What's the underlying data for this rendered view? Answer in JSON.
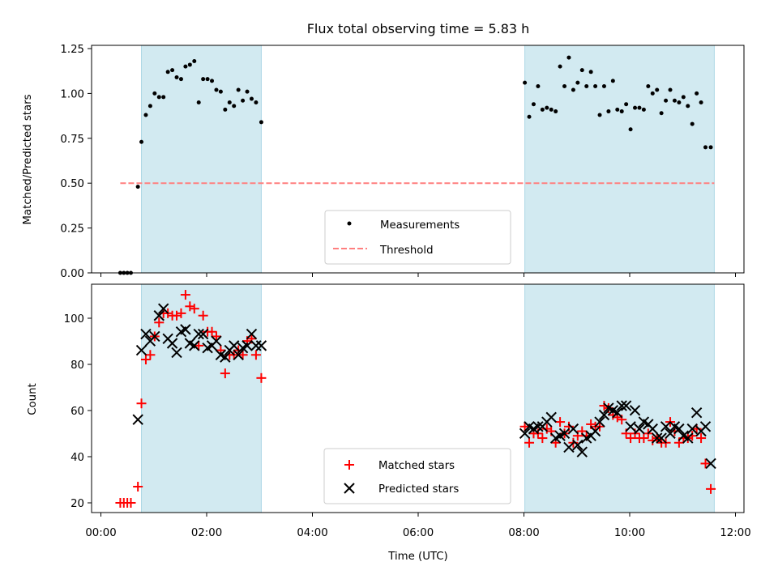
{
  "title": "Flux total observing time = 5.83 h",
  "colors": {
    "span": "#add8e6",
    "threshold": "#ff7f7f",
    "measurement": "#000000",
    "matched": "#ff0000",
    "predicted": "#000000"
  },
  "chart_data": [
    {
      "type": "scatter",
      "panel": "top",
      "ylabel": "Matched/Predicted stars",
      "xlim": [
        "00:00",
        "12:00"
      ],
      "ylim": [
        0,
        1.25
      ],
      "yticks": [
        "0.00",
        "0.25",
        "0.50",
        "0.75",
        "1.00",
        "1.25"
      ],
      "xticks_labels_shown": false,
      "legend_position": "bottom-center",
      "observing_spans": [
        [
          "00:46",
          "03:02"
        ],
        [
          "08:01",
          "11:36"
        ]
      ],
      "threshold": {
        "name": "Threshold",
        "value": 0.5,
        "x_range": [
          "00:22",
          "11:36"
        ],
        "style": "dashed"
      },
      "series": [
        {
          "name": "Measurements",
          "marker": "dot",
          "points": [
            [
              "00:22",
              0.0
            ],
            [
              "00:26",
              0.0
            ],
            [
              "00:30",
              0.0
            ],
            [
              "00:34",
              0.0
            ],
            [
              "00:42",
              0.48
            ],
            [
              "00:46",
              0.73
            ],
            [
              "00:51",
              0.88
            ],
            [
              "00:56",
              0.93
            ],
            [
              "01:01",
              1.0
            ],
            [
              "01:06",
              0.98
            ],
            [
              "01:11",
              0.98
            ],
            [
              "01:16",
              1.12
            ],
            [
              "01:21",
              1.13
            ],
            [
              "01:26",
              1.09
            ],
            [
              "01:31",
              1.08
            ],
            [
              "01:36",
              1.15
            ],
            [
              "01:41",
              1.16
            ],
            [
              "01:46",
              1.18
            ],
            [
              "01:51",
              0.95
            ],
            [
              "01:56",
              1.08
            ],
            [
              "02:01",
              1.08
            ],
            [
              "02:06",
              1.07
            ],
            [
              "02:11",
              1.02
            ],
            [
              "02:16",
              1.01
            ],
            [
              "02:21",
              0.91
            ],
            [
              "02:26",
              0.95
            ],
            [
              "02:31",
              0.93
            ],
            [
              "02:36",
              1.02
            ],
            [
              "02:41",
              0.96
            ],
            [
              "02:46",
              1.01
            ],
            [
              "02:51",
              0.97
            ],
            [
              "02:56",
              0.95
            ],
            [
              "03:02",
              0.84
            ],
            [
              "08:01",
              1.06
            ],
            [
              "08:06",
              0.87
            ],
            [
              "08:11",
              0.94
            ],
            [
              "08:16",
              1.04
            ],
            [
              "08:21",
              0.91
            ],
            [
              "08:26",
              0.92
            ],
            [
              "08:31",
              0.91
            ],
            [
              "08:36",
              0.9
            ],
            [
              "08:41",
              1.15
            ],
            [
              "08:46",
              1.04
            ],
            [
              "08:51",
              1.2
            ],
            [
              "08:56",
              1.02
            ],
            [
              "09:01",
              1.06
            ],
            [
              "09:06",
              1.13
            ],
            [
              "09:11",
              1.04
            ],
            [
              "09:16",
              1.12
            ],
            [
              "09:21",
              1.04
            ],
            [
              "09:26",
              0.88
            ],
            [
              "09:31",
              1.04
            ],
            [
              "09:36",
              0.9
            ],
            [
              "09:41",
              1.07
            ],
            [
              "09:46",
              0.91
            ],
            [
              "09:51",
              0.9
            ],
            [
              "09:56",
              0.94
            ],
            [
              "10:01",
              0.8
            ],
            [
              "10:06",
              0.92
            ],
            [
              "10:11",
              0.92
            ],
            [
              "10:16",
              0.91
            ],
            [
              "10:21",
              1.04
            ],
            [
              "10:26",
              1.0
            ],
            [
              "10:31",
              1.02
            ],
            [
              "10:36",
              0.89
            ],
            [
              "10:41",
              0.96
            ],
            [
              "10:46",
              1.02
            ],
            [
              "10:51",
              0.96
            ],
            [
              "10:56",
              0.95
            ],
            [
              "11:01",
              0.98
            ],
            [
              "11:06",
              0.93
            ],
            [
              "11:11",
              0.83
            ],
            [
              "11:16",
              1.0
            ],
            [
              "11:21",
              0.95
            ],
            [
              "11:26",
              0.7
            ],
            [
              "11:32",
              0.7
            ]
          ]
        }
      ]
    },
    {
      "type": "scatter",
      "panel": "bottom",
      "xlabel": "Time (UTC)",
      "ylabel": "Count",
      "xlim": [
        "00:00",
        "12:00"
      ],
      "ylim": [
        16,
        115
      ],
      "xticks": [
        "00:00",
        "02:00",
        "04:00",
        "06:00",
        "08:00",
        "10:00",
        "12:00"
      ],
      "yticks": [
        "20",
        "40",
        "60",
        "80",
        "100"
      ],
      "legend_position": "bottom-center",
      "observing_spans": [
        [
          "00:46",
          "03:02"
        ],
        [
          "08:01",
          "11:36"
        ]
      ],
      "series": [
        {
          "name": "Matched stars",
          "marker": "plus",
          "points": [
            [
              "00:22",
              20
            ],
            [
              "00:26",
              20
            ],
            [
              "00:30",
              20
            ],
            [
              "00:34",
              20
            ],
            [
              "00:42",
              27
            ],
            [
              "00:46",
              63
            ],
            [
              "00:51",
              82
            ],
            [
              "00:56",
              84
            ],
            [
              "01:01",
              92
            ],
            [
              "01:06",
              98
            ],
            [
              "01:11",
              102
            ],
            [
              "01:16",
              102
            ],
            [
              "01:21",
              101
            ],
            [
              "01:26",
              101
            ],
            [
              "01:31",
              102
            ],
            [
              "01:36",
              110
            ],
            [
              "01:41",
              105
            ],
            [
              "01:46",
              104
            ],
            [
              "01:51",
              88
            ],
            [
              "01:56",
              101
            ],
            [
              "02:01",
              94
            ],
            [
              "02:06",
              94
            ],
            [
              "02:11",
              92
            ],
            [
              "02:16",
              86
            ],
            [
              "02:21",
              76
            ],
            [
              "02:26",
              84
            ],
            [
              "02:31",
              84
            ],
            [
              "02:36",
              86
            ],
            [
              "02:41",
              84
            ],
            [
              "02:46",
              90
            ],
            [
              "02:51",
              91
            ],
            [
              "02:56",
              84
            ],
            [
              "03:02",
              74
            ],
            [
              "08:01",
              53
            ],
            [
              "08:06",
              46
            ],
            [
              "08:11",
              50
            ],
            [
              "08:16",
              50
            ],
            [
              "08:21",
              48
            ],
            [
              "08:26",
              52
            ],
            [
              "08:31",
              51
            ],
            [
              "08:36",
              46
            ],
            [
              "08:41",
              55
            ],
            [
              "08:46",
              50
            ],
            [
              "08:51",
              53
            ],
            [
              "08:56",
              46
            ],
            [
              "09:01",
              49
            ],
            [
              "09:06",
              51
            ],
            [
              "09:11",
              49
            ],
            [
              "09:16",
              54
            ],
            [
              "09:21",
              53
            ],
            [
              "09:26",
              53
            ],
            [
              "09:31",
              62
            ],
            [
              "09:36",
              61
            ],
            [
              "09:41",
              58
            ],
            [
              "09:46",
              57
            ],
            [
              "09:51",
              56
            ],
            [
              "09:56",
              50
            ],
            [
              "10:01",
              48
            ],
            [
              "10:06",
              50
            ],
            [
              "10:11",
              48
            ],
            [
              "10:16",
              48
            ],
            [
              "10:21",
              50
            ],
            [
              "10:26",
              47
            ],
            [
              "10:31",
              48
            ],
            [
              "10:36",
              46
            ],
            [
              "10:41",
              46
            ],
            [
              "10:46",
              55
            ],
            [
              "10:51",
              51
            ],
            [
              "10:56",
              46
            ],
            [
              "11:01",
              48
            ],
            [
              "11:06",
              48
            ],
            [
              "11:11",
              49
            ],
            [
              "11:16",
              52
            ],
            [
              "11:21",
              48
            ],
            [
              "11:26",
              37
            ],
            [
              "11:32",
              26
            ]
          ]
        },
        {
          "name": "Predicted stars",
          "marker": "x",
          "points": [
            [
              "00:42",
              56
            ],
            [
              "00:46",
              86
            ],
            [
              "00:51",
              93
            ],
            [
              "00:56",
              90
            ],
            [
              "01:01",
              92
            ],
            [
              "01:06",
              101
            ],
            [
              "01:11",
              104
            ],
            [
              "01:16",
              91
            ],
            [
              "01:21",
              89
            ],
            [
              "01:26",
              85
            ],
            [
              "01:31",
              94
            ],
            [
              "01:36",
              95
            ],
            [
              "01:41",
              89
            ],
            [
              "01:46",
              88
            ],
            [
              "01:51",
              93
            ],
            [
              "01:56",
              93
            ],
            [
              "02:01",
              87
            ],
            [
              "02:06",
              88
            ],
            [
              "02:11",
              90
            ],
            [
              "02:16",
              84
            ],
            [
              "02:21",
              83
            ],
            [
              "02:26",
              86
            ],
            [
              "02:31",
              88
            ],
            [
              "02:36",
              84
            ],
            [
              "02:41",
              87
            ],
            [
              "02:46",
              88
            ],
            [
              "02:51",
              93
            ],
            [
              "02:56",
              88
            ],
            [
              "03:02",
              88
            ],
            [
              "08:01",
              50
            ],
            [
              "08:06",
              53
            ],
            [
              "08:11",
              52
            ],
            [
              "08:16",
              53
            ],
            [
              "08:21",
              53
            ],
            [
              "08:26",
              55
            ],
            [
              "08:31",
              57
            ],
            [
              "08:36",
              48
            ],
            [
              "08:41",
              49
            ],
            [
              "08:46",
              50
            ],
            [
              "08:51",
              44
            ],
            [
              "08:56",
              52
            ],
            [
              "09:01",
              45
            ],
            [
              "09:06",
              42
            ],
            [
              "09:11",
              48
            ],
            [
              "09:16",
              49
            ],
            [
              "09:21",
              51
            ],
            [
              "09:26",
              55
            ],
            [
              "09:31",
              58
            ],
            [
              "09:36",
              61
            ],
            [
              "09:41",
              60
            ],
            [
              "09:46",
              59
            ],
            [
              "09:51",
              62
            ],
            [
              "09:56",
              62
            ],
            [
              "10:01",
              53
            ],
            [
              "10:06",
              60
            ],
            [
              "10:11",
              52
            ],
            [
              "10:16",
              55
            ],
            [
              "10:21",
              54
            ],
            [
              "10:26",
              52
            ],
            [
              "10:31",
              48
            ],
            [
              "10:36",
              48
            ],
            [
              "10:41",
              53
            ],
            [
              "10:46",
              50
            ],
            [
              "10:51",
              53
            ],
            [
              "10:56",
              52
            ],
            [
              "11:01",
              49
            ],
            [
              "11:06",
              48
            ],
            [
              "11:11",
              52
            ],
            [
              "11:16",
              59
            ],
            [
              "11:21",
              51
            ],
            [
              "11:26",
              53
            ],
            [
              "11:32",
              37
            ]
          ]
        }
      ]
    }
  ]
}
